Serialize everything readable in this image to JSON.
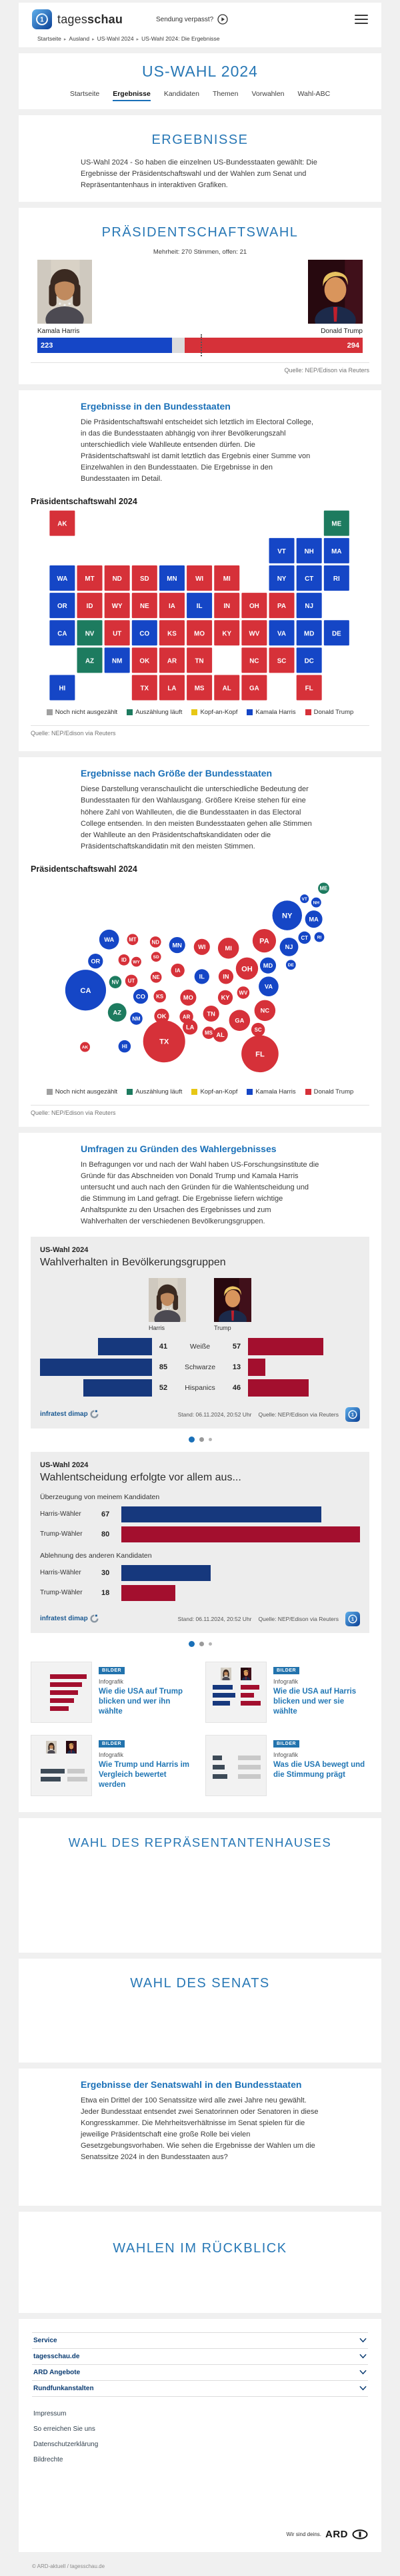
{
  "header": {
    "brand_regular": "tages",
    "brand_bold": "schau",
    "missed": "Sendung verpasst?",
    "breadcrumb": [
      "Startseite",
      "Ausland",
      "US-Wahl 2024",
      "US-Wahl 2024: Die Ergebnisse"
    ]
  },
  "hub": {
    "title": "US-WAHL 2024",
    "tabs": [
      {
        "label": "Startseite",
        "active": false
      },
      {
        "label": "Ergebnisse",
        "active": true
      },
      {
        "label": "Kandidaten",
        "active": false
      },
      {
        "label": "Themen",
        "active": false
      },
      {
        "label": "Vorwahlen",
        "active": false
      },
      {
        "label": "Wahl-ABC",
        "active": false
      }
    ]
  },
  "results_intro": {
    "heading": "ERGEBNISSE",
    "text": "US-Wahl 2024 - So haben die einzelnen US-Bundesstaaten gewählt: Die Ergebnisse der Präsidentschaftswahl und der Wahlen zum Senat und Repräsentantenhaus in interaktiven Grafiken."
  },
  "president": {
    "heading": "PRÄSIDENTSCHAFTSWAHL",
    "majority_note": "Mehrheit: 270 Stimmen, offen: 21",
    "harris_name": "Kamala Harris",
    "trump_name": "Donald Trump",
    "source": "Quelle: NEP/Edison via Reuters"
  },
  "states_section": {
    "heading": "Ergebnisse in den Bundesstaaten",
    "text": "Die Präsidentschaftswahl entscheidet sich letztlich im Electoral College, in das die Bundesstaaten abhängig von ihrer Bevölkerungszahl unterschiedlich viele Wahlleute entsenden dürfen. Die Präsidentschaftswahl ist damit letztlich das Ergebnis einer Summe von Einzelwahlen in den Bundesstaaten. Die Ergebnisse in den Bundesstaaten im Detail.",
    "chart_title": "Präsidentschaftswahl 2024",
    "source": "Quelle: NEP/Edison via Reuters"
  },
  "size_section": {
    "heading": "Ergebnisse nach Größe der Bundesstaaten",
    "text": "Diese Darstellung veranschaulicht die unterschiedliche Bedeutung der Bundesstaaten für den Wahlausgang. Größere Kreise stehen für eine höhere Zahl von Wahlleuten, die die Bundesstaaten in das Electoral College entsenden. In den meisten Bundesstaaten gehen alle Stimmen der Wahlleute an den Präsidentschaftskandidaten oder die Präsidentschaftskandidatin mit den meisten Stimmen.",
    "chart_title": "Präsidentschaftswahl 2024",
    "source": "Quelle: NEP/Edison via Reuters"
  },
  "polls_section": {
    "heading": "Umfragen zu Gründen des Wahlergebnisses",
    "text": "In Befragungen vor und nach der Wahl haben US-Forschungsinstitute die Gründe für das Abschneiden von Donald Trump und Kamala Harris untersucht und auch nach den Gründen für die Wahlentscheidung und die Stimmung im Land gefragt. Die Ergebnisse liefern wichtige Anhaltspunkte zu den Ursachen des Ergebnisses und zum Wahlverhalten der verschiedenen Bevölkerungsgruppen."
  },
  "cards": {
    "kicker": "US-Wahl 2024",
    "demographics_title": "Wahlverhalten in Bevölkerungsgruppen",
    "decision_title": "Wahlentscheidung erfolgte vor allem aus...",
    "left_label": "Harris",
    "right_label": "Trump",
    "brand": "infratest dimap",
    "stand": "Stand:  06.11.2024, 20:52 Uhr",
    "source": "Quelle: NEP/Edison via Reuters"
  },
  "colors": {
    "harris": "#1546c6",
    "trump": "#d63139",
    "counting": "#1d7b5f",
    "open": "#dcdcdc",
    "not_counted": "#a0a0a0",
    "head_to_head": "#e7c715",
    "navy": "#16387d",
    "crimson": "#a30f2e",
    "accent_blue": "#1a70b8"
  },
  "chart_data": [
    {
      "type": "bar",
      "name": "electoral-college-bar",
      "title": "Präsidentschaftswahl 2024 – Electoral College",
      "series": [
        {
          "name": "Kamala Harris",
          "value": 223,
          "color_key": "harris"
        },
        {
          "name": "offen",
          "value": 21,
          "color_key": "open"
        },
        {
          "name": "Donald Trump",
          "value": 294,
          "color_key": "trump"
        }
      ],
      "total": 538,
      "majority": 270
    },
    {
      "type": "heatmap",
      "name": "state-choropleth",
      "title": "Präsidentschaftswahl 2024",
      "legend": [
        {
          "label": "Noch nicht ausgezählt",
          "color_key": "not_counted"
        },
        {
          "label": "Auszählung läuft",
          "color_key": "counting"
        },
        {
          "label": "Kopf-an-Kopf",
          "color_key": "head_to_head"
        },
        {
          "label": "Kamala Harris",
          "color_key": "harris"
        },
        {
          "label": "Donald Trump",
          "color_key": "trump"
        }
      ],
      "harris_states": [
        "WA",
        "OR",
        "CA",
        "CO",
        "NM",
        "MN",
        "IL",
        "NY",
        "NJ",
        "VT",
        "NH",
        "MA",
        "CT",
        "RI",
        "DE",
        "MD",
        "DC",
        "VA",
        "HI"
      ],
      "counting_states": [
        "ME",
        "NV",
        "AZ"
      ],
      "trump_states": [
        "AK",
        "MT",
        "ND",
        "SD",
        "WI",
        "MI",
        "ID",
        "WY",
        "NE",
        "IA",
        "IN",
        "OH",
        "PA",
        "KS",
        "MO",
        "KY",
        "WV",
        "UT",
        "OK",
        "AR",
        "TN",
        "NC",
        "SC",
        "TX",
        "LA",
        "MS",
        "AL",
        "GA",
        "FL"
      ],
      "tiles": [
        [
          "AK",
          0,
          0
        ],
        [
          "ME",
          10,
          0
        ],
        [
          "VT",
          8,
          1
        ],
        [
          "NH",
          9,
          1
        ],
        [
          "MA",
          10,
          1
        ],
        [
          "WA",
          0,
          2
        ],
        [
          "MT",
          1,
          2
        ],
        [
          "ND",
          2,
          2
        ],
        [
          "SD",
          3,
          2
        ],
        [
          "MN",
          4,
          2
        ],
        [
          "WI",
          5,
          2
        ],
        [
          "MI",
          6,
          2
        ],
        [
          "NY",
          8,
          2
        ],
        [
          "CT",
          9,
          2
        ],
        [
          "RI",
          10,
          2
        ],
        [
          "OR",
          0,
          3
        ],
        [
          "ID",
          1,
          3
        ],
        [
          "WY",
          2,
          3
        ],
        [
          "NE",
          3,
          3
        ],
        [
          "IA",
          4,
          3
        ],
        [
          "IL",
          5,
          3
        ],
        [
          "IN",
          6,
          3
        ],
        [
          "OH",
          7,
          3
        ],
        [
          "PA",
          8,
          3
        ],
        [
          "NJ",
          9,
          3
        ],
        [
          "CA",
          0,
          4
        ],
        [
          "NV",
          1,
          4
        ],
        [
          "UT",
          2,
          4
        ],
        [
          "CO",
          3,
          4
        ],
        [
          "KS",
          4,
          4
        ],
        [
          "MO",
          5,
          4
        ],
        [
          "KY",
          6,
          4
        ],
        [
          "WV",
          7,
          4
        ],
        [
          "VA",
          8,
          4
        ],
        [
          "MD",
          9,
          4
        ],
        [
          "DE",
          10,
          4
        ],
        [
          "AZ",
          1,
          5
        ],
        [
          "NM",
          2,
          5
        ],
        [
          "OK",
          3,
          5
        ],
        [
          "AR",
          4,
          5
        ],
        [
          "TN",
          5,
          5
        ],
        [
          "NC",
          7,
          5
        ],
        [
          "SC",
          8,
          5
        ],
        [
          "DC",
          9,
          5
        ],
        [
          "HI",
          0,
          6
        ],
        [
          "TX",
          3,
          6
        ],
        [
          "LA",
          4,
          6
        ],
        [
          "MS",
          5,
          6
        ],
        [
          "AL",
          6,
          6
        ],
        [
          "GA",
          7,
          6
        ],
        [
          "FL",
          9,
          6
        ]
      ]
    },
    {
      "type": "scatter",
      "name": "state-bubble-cartogram",
      "title": "Präsidentschaftswahl 2024",
      "note": "circle radius ~ number of electors",
      "bubbles": [
        [
          "ME",
          470,
          17,
          9,
          "counting"
        ],
        [
          "VT",
          439,
          34,
          7,
          "harris"
        ],
        [
          "NH",
          458,
          40,
          8,
          "harris"
        ],
        [
          "NY",
          411,
          61,
          24,
          "harris"
        ],
        [
          "MA",
          454,
          67,
          14,
          "harris"
        ],
        [
          "WA",
          123,
          100,
          16,
          "harris"
        ],
        [
          "MT",
          161,
          100,
          9,
          "trump"
        ],
        [
          "ND",
          198,
          104,
          9,
          "trump"
        ],
        [
          "MN",
          233,
          109,
          13,
          "harris"
        ],
        [
          "WI",
          273,
          112,
          13,
          "trump"
        ],
        [
          "MI",
          316,
          114,
          17,
          "trump"
        ],
        [
          "PA",
          374,
          102,
          19,
          "trump"
        ],
        [
          "NJ",
          414,
          112,
          15,
          "harris"
        ],
        [
          "CT",
          439,
          97,
          10,
          "harris"
        ],
        [
          "RI",
          463,
          96,
          8,
          "harris"
        ],
        [
          "OR",
          101,
          135,
          12,
          "harris"
        ],
        [
          "ID",
          147,
          133,
          9,
          "trump"
        ],
        [
          "WY",
          167,
          136,
          8,
          "trump"
        ],
        [
          "SD",
          199,
          128,
          8,
          "trump"
        ],
        [
          "IA",
          234,
          150,
          11,
          "trump"
        ],
        [
          "IL",
          273,
          160,
          12,
          "harris"
        ],
        [
          "IN",
          312,
          160,
          12,
          "trump"
        ],
        [
          "OH",
          346,
          147,
          18,
          "trump"
        ],
        [
          "MD",
          380,
          142,
          13,
          "harris"
        ],
        [
          "DE",
          417,
          141,
          8,
          "harris"
        ],
        [
          "CA",
          85,
          182,
          33,
          "harris"
        ],
        [
          "NV",
          133,
          169,
          10,
          "counting"
        ],
        [
          "UT",
          159,
          167,
          10,
          "trump"
        ],
        [
          "NE",
          199,
          161,
          9,
          "trump"
        ],
        [
          "VA",
          381,
          176,
          16,
          "harris"
        ],
        [
          "CO",
          174,
          192,
          12,
          "harris"
        ],
        [
          "KS",
          205,
          192,
          10,
          "trump"
        ],
        [
          "MO",
          251,
          194,
          13,
          "trump"
        ],
        [
          "KY",
          311,
          194,
          12,
          "trump"
        ],
        [
          "WV",
          340,
          186,
          10,
          "trump"
        ],
        [
          "NC",
          375,
          215,
          17,
          "trump"
        ],
        [
          "AZ",
          136,
          218,
          15,
          "counting"
        ],
        [
          "NM",
          167,
          228,
          10,
          "harris"
        ],
        [
          "OK",
          208,
          224,
          12,
          "trump"
        ],
        [
          "AR",
          248,
          225,
          11,
          "trump"
        ],
        [
          "TN",
          288,
          220,
          13,
          "trump"
        ],
        [
          "GA",
          334,
          231,
          17,
          "trump"
        ],
        [
          "SC",
          364,
          246,
          11,
          "trump"
        ],
        [
          "MS",
          284,
          251,
          10,
          "trump"
        ],
        [
          "AL",
          303,
          254,
          12,
          "trump"
        ],
        [
          "LA",
          254,
          242,
          12,
          "trump"
        ],
        [
          "TX",
          212,
          265,
          34,
          "trump"
        ],
        [
          "FL",
          367,
          285,
          30,
          "trump"
        ],
        [
          "AK",
          84,
          274,
          8,
          "trump"
        ],
        [
          "HI",
          148,
          273,
          10,
          "harris"
        ]
      ]
    },
    {
      "type": "bar",
      "name": "demographics",
      "title": "Wahlverhalten in Bevölkerungsgruppen",
      "categories": [
        "Weiße",
        "Schwarze",
        "Hispanics"
      ],
      "series": [
        {
          "name": "Harris",
          "values": [
            41,
            85,
            52
          ],
          "color_key": "navy"
        },
        {
          "name": "Trump",
          "values": [
            57,
            13,
            46
          ],
          "color_key": "crimson"
        }
      ],
      "max": 85
    },
    {
      "type": "bar",
      "name": "decision-reasons",
      "title": "Wahlentscheidung erfolgte vor allem aus...",
      "max": 80,
      "groups": [
        {
          "label": "Überzeugung von meinem Kandidaten",
          "rows": [
            {
              "label": "Harris-Wähler",
              "value": 67,
              "color_key": "navy"
            },
            {
              "label": "Trump-Wähler",
              "value": 80,
              "color_key": "crimson"
            }
          ]
        },
        {
          "label": "Ablehnung des anderen Kandidaten",
          "rows": [
            {
              "label": "Harris-Wähler",
              "value": 30,
              "color_key": "navy"
            },
            {
              "label": "Trump-Wähler",
              "value": 18,
              "color_key": "crimson"
            }
          ]
        }
      ]
    }
  ],
  "carousel": {
    "dot_count": 3,
    "active": 0
  },
  "teasers": [
    {
      "badge": "BILDER",
      "type": "Infografik",
      "title": "Wie die USA auf Trump blicken und wer ihn wählte",
      "variant": "red-bars"
    },
    {
      "badge": "BILDER",
      "type": "Infografik",
      "title": "Wie die USA auf Harris blicken und wer sie wählte",
      "variant": "duo-bars"
    },
    {
      "badge": "BILDER",
      "type": "Infografik",
      "title": "Wie Trump und Harris im Vergleich bewertet werden",
      "variant": "dark-bars"
    },
    {
      "badge": "BILDER",
      "type": "Infografik",
      "title": "Was die USA bewegt und die Stimmung prägt",
      "variant": "gray-bars"
    }
  ],
  "house": {
    "heading": "WAHL DES REPRÄSENTANTENHAUSES"
  },
  "senate": {
    "heading": "WAHL DES SENATS"
  },
  "senate_states": {
    "heading": "Ergebnisse der Senatswahl in den Bundesstaaten",
    "text": "Etwa ein Drittel der 100 Senatssitze wird alle zwei Jahre neu gewählt. Jeder Bundesstaat entsendet zwei Senatorinnen oder Senatoren in diese Kongresskammer. Die Mehrheitsverhältnisse im Senat spielen für die jeweilige Präsidentschaft eine große Rolle bei vielen Gesetzgebungsvorhaben. Wie sehen die Ergebnisse der Wahlen um die Senatssitze 2024 in den Bundesstaaten aus?"
  },
  "review": {
    "heading": "WAHLEN IM RÜCKBLICK"
  },
  "footer": {
    "sections": [
      "Service",
      "tagesschau.de",
      "ARD Angebote",
      "Rundfunkanstalten"
    ],
    "links": [
      "Impressum",
      "So erreichen Sie uns",
      "Datenschutzerklärung",
      "Bildrechte"
    ],
    "tagline": "Wir sind deins.",
    "ard": "ARD",
    "copyright": "© ARD-aktuell / tagesschau.de"
  }
}
